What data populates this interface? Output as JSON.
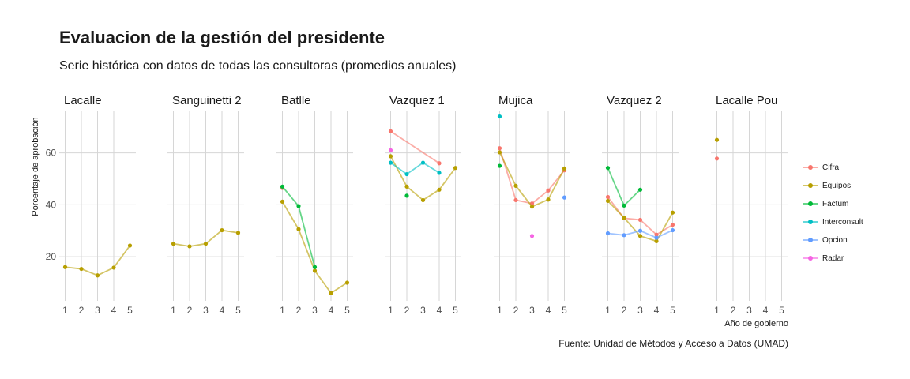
{
  "title": "Evaluacion de la gestión del presidente",
  "subtitle": "Serie histórica con datos de todas las consultoras (promedios anuales)",
  "caption": "Fuente: Unidad de Métodos y Acceso a Datos (UMAD)",
  "colors": {
    "Cifra": "#F8766D",
    "Equipos": "#B79F00",
    "Factum": "#00BA38",
    "Interconsult": "#00BFC4",
    "Opcion": "#619CFF",
    "Radar": "#F564E3"
  },
  "chart_data": {
    "type": "line",
    "facet_type": "small-multiples",
    "ylabel": "Porcentaje de aprobación",
    "xlabel": "Año de gobierno",
    "x_ticks": [
      1,
      2,
      3,
      4,
      5
    ],
    "y_ticks": [
      20,
      40,
      60
    ],
    "ylim": [
      3,
      76
    ],
    "grid": true,
    "legend_position": "right",
    "legend": [
      "Cifra",
      "Equipos",
      "Factum",
      "Interconsult",
      "Opcion",
      "Radar"
    ],
    "panels": [
      {
        "name": "Lacalle",
        "series": [
          {
            "name": "Equipos",
            "x": [
              1,
              2,
              3,
              4,
              5
            ],
            "y": [
              16,
              15.3,
              12.8,
              15.8,
              24.3
            ]
          }
        ]
      },
      {
        "name": "Sanguinetti 2",
        "series": [
          {
            "name": "Equipos",
            "x": [
              1,
              2,
              3,
              4,
              5
            ],
            "y": [
              25,
              24,
              25,
              30.2,
              29.2
            ]
          }
        ]
      },
      {
        "name": "Batlle",
        "series": [
          {
            "name": "Cifra",
            "x": [
              1
            ],
            "y": [
              46.5
            ]
          },
          {
            "name": "Equipos",
            "x": [
              1,
              2,
              3,
              4,
              5
            ],
            "y": [
              41.2,
              30.6,
              14.6,
              6,
              10
            ]
          },
          {
            "name": "Factum",
            "x": [
              1,
              2,
              3
            ],
            "y": [
              47,
              39.5,
              16
            ]
          }
        ]
      },
      {
        "name": "Vazquez 1",
        "series": [
          {
            "name": "Cifra",
            "x": [
              1,
              4
            ],
            "y": [
              68.3,
              56
            ]
          },
          {
            "name": "Equipos",
            "x": [
              1,
              2,
              3,
              4,
              5
            ],
            "y": [
              58.7,
              47,
              41.8,
              45.8,
              54.2
            ]
          },
          {
            "name": "Factum",
            "x": [
              2
            ],
            "y": [
              43.5
            ]
          },
          {
            "name": "Interconsult",
            "x": [
              1,
              2,
              3,
              4
            ],
            "y": [
              56.2,
              51.8,
              56.2,
              52.3
            ]
          },
          {
            "name": "Radar",
            "x": [
              1
            ],
            "y": [
              61
            ]
          }
        ]
      },
      {
        "name": "Mujica",
        "series": [
          {
            "name": "Cifra",
            "x": [
              1,
              2,
              3,
              4,
              5
            ],
            "y": [
              61.8,
              41.8,
              40.5,
              45.5,
              53.3
            ]
          },
          {
            "name": "Equipos",
            "x": [
              1,
              2,
              3,
              4,
              5
            ],
            "y": [
              60.2,
              47.3,
              39.3,
              42,
              54
            ]
          },
          {
            "name": "Factum",
            "x": [
              1
            ],
            "y": [
              55
            ]
          },
          {
            "name": "Interconsult",
            "x": [
              1
            ],
            "y": [
              74
            ]
          },
          {
            "name": "Opcion",
            "x": [
              5
            ],
            "y": [
              42.8
            ]
          },
          {
            "name": "Radar",
            "x": [
              3
            ],
            "y": [
              28
            ]
          }
        ]
      },
      {
        "name": "Vazquez 2",
        "series": [
          {
            "name": "Cifra",
            "x": [
              1,
              2,
              3,
              4,
              5
            ],
            "y": [
              43,
              34.8,
              34.2,
              28.5,
              32.3
            ]
          },
          {
            "name": "Equipos",
            "x": [
              1,
              2,
              3,
              4,
              5
            ],
            "y": [
              41.5,
              35,
              28,
              26,
              37
            ]
          },
          {
            "name": "Factum",
            "x": [
              1,
              2,
              3
            ],
            "y": [
              54.2,
              39.7,
              45.8
            ]
          },
          {
            "name": "Opcion",
            "x": [
              1,
              2,
              3,
              4,
              5
            ],
            "y": [
              29,
              28.3,
              30,
              27.3,
              30.2
            ]
          }
        ]
      },
      {
        "name": "Lacalle Pou",
        "series": [
          {
            "name": "Cifra",
            "x": [
              1
            ],
            "y": [
              57.8
            ]
          },
          {
            "name": "Equipos",
            "x": [
              1
            ],
            "y": [
              65
            ]
          }
        ]
      }
    ]
  }
}
